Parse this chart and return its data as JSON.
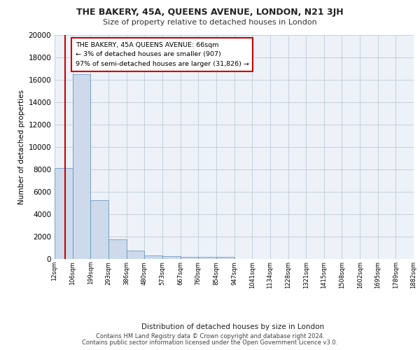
{
  "title1": "THE BAKERY, 45A, QUEENS AVENUE, LONDON, N21 3JH",
  "title2": "Size of property relative to detached houses in London",
  "xlabel": "Distribution of detached houses by size in London",
  "ylabel": "Number of detached properties",
  "annotation_line1": "THE BAKERY, 45A QUEENS AVENUE: 66sqm",
  "annotation_line2": "← 3% of detached houses are smaller (907)",
  "annotation_line3": "97% of semi-detached houses are larger (31,826) →",
  "footer1": "Contains HM Land Registry data © Crown copyright and database right 2024.",
  "footer2": "Contains public sector information licensed under the Open Government Licence v3.0.",
  "property_size": 66,
  "bar_color": "#ccdaeb",
  "bar_edge_color": "#5b8db8",
  "grid_color": "#c5d0de",
  "bg_color": "#edf1f8",
  "vline_color": "#cc0000",
  "bin_edges": [
    12,
    106,
    199,
    293,
    386,
    480,
    573,
    667,
    760,
    854,
    947,
    1041,
    1134,
    1228,
    1321,
    1415,
    1508,
    1602,
    1695,
    1789,
    1882
  ],
  "bar_heights": [
    8100,
    16500,
    5250,
    1750,
    750,
    320,
    260,
    210,
    195,
    165,
    0,
    0,
    0,
    0,
    0,
    0,
    0,
    0,
    0,
    0
  ],
  "ylim": [
    0,
    20000
  ],
  "yticks": [
    0,
    2000,
    4000,
    6000,
    8000,
    10000,
    12000,
    14000,
    16000,
    18000,
    20000
  ]
}
